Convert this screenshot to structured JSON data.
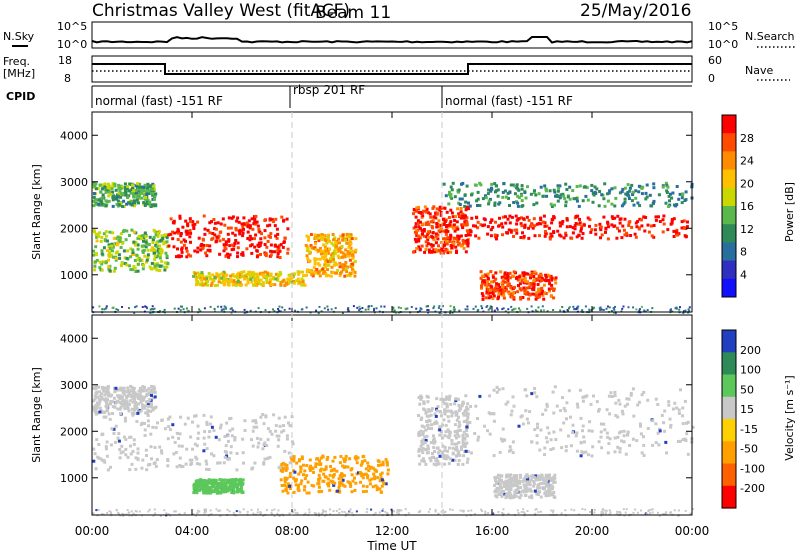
{
  "header": {
    "station": "Christmas Valley West (fitACF)",
    "beam": "Beam 11",
    "date": "25/May/2016"
  },
  "noise_panel": {
    "left_label": "N.Sky",
    "right_label": "N.Search",
    "left_ticks": [
      "10^5",
      "10^0"
    ],
    "right_ticks": [
      "10^5",
      "10^0"
    ]
  },
  "freq_panel": {
    "left_label_1": "Freq.",
    "left_label_2": "[MHz]",
    "right_label": "Nave",
    "left_ticks": [
      "18",
      "8"
    ],
    "right_ticks": [
      "60",
      "0"
    ]
  },
  "cpid_panel": {
    "label": "CPID",
    "segments": [
      {
        "name": "normal (fast) -151 RF",
        "start_hour": 0
      },
      {
        "name": "rbsp 201 RF",
        "start_hour": 8
      },
      {
        "name": "normal (fast) -151 RF",
        "start_hour": 14
      }
    ]
  },
  "power_colorbar": {
    "label": "Power [dB]",
    "ticks": [
      "28",
      "24",
      "20",
      "16",
      "12",
      "8",
      "4"
    ],
    "colors": [
      "#ff0000",
      "#ff4a00",
      "#ff8c00",
      "#ffc000",
      "#c8d800",
      "#5ab84c",
      "#2e8b57",
      "#2a6e9e",
      "#3030c0",
      "#1010ff"
    ]
  },
  "velocity_colorbar": {
    "label": "Velocity [m s⁻¹]",
    "ticks": [
      "200",
      "100",
      "50",
      "15",
      "-15",
      "-50",
      "-100",
      "-200"
    ],
    "colors": [
      "#2040c0",
      "#2e8b57",
      "#5cc85c",
      "#c8c8c8",
      "#ffd000",
      "#ffa000",
      "#ff6000",
      "#ff0000"
    ]
  },
  "x_axis": {
    "label": "Time UT",
    "ticks": [
      "00:00",
      "04:00",
      "08:00",
      "12:00",
      "16:00",
      "20:00",
      "00:00"
    ]
  },
  "chart_data": [
    {
      "type": "heatmap",
      "title": "Power",
      "xlabel": "Time UT",
      "ylabel": "Slant Range [km]",
      "ylim": [
        200,
        4500
      ],
      "xlim_hours": [
        0,
        24
      ],
      "yticks": [
        "1000",
        "2000",
        "3000",
        "4000"
      ],
      "colorbar_label": "Power [dB]",
      "bands": [
        {
          "t": [
            0,
            2.5
          ],
          "r": [
            2500,
            3000
          ],
          "level": 12
        },
        {
          "t": [
            0,
            3.0
          ],
          "r": [
            1100,
            2000
          ],
          "level": 14
        },
        {
          "t": [
            3.0,
            7.8
          ],
          "r": [
            1400,
            2300
          ],
          "level": 28
        },
        {
          "t": [
            4.0,
            8.5
          ],
          "r": [
            800,
            1100
          ],
          "level": 18
        },
        {
          "t": [
            8.5,
            10.5
          ],
          "r": [
            1000,
            1900
          ],
          "level": 20
        },
        {
          "t": [
            12.8,
            15.0
          ],
          "r": [
            1500,
            2500
          ],
          "level": 26
        },
        {
          "t": [
            14.5,
            23.8
          ],
          "r": [
            1800,
            2300
          ],
          "level": 28
        },
        {
          "t": [
            15.5,
            18.5
          ],
          "r": [
            500,
            1100
          ],
          "level": 26
        },
        {
          "t": [
            14.0,
            24.0
          ],
          "r": [
            2500,
            3000
          ],
          "level": 10
        }
      ]
    },
    {
      "type": "heatmap",
      "title": "Velocity",
      "xlabel": "Time UT",
      "ylabel": "Slant Range [km]",
      "ylim": [
        200,
        4500
      ],
      "xlim_hours": [
        0,
        24
      ],
      "yticks": [
        "1000",
        "2000",
        "3000",
        "4000"
      ],
      "colorbar_label": "Velocity [m s⁻¹]",
      "bands": [
        {
          "t": [
            0,
            2.5
          ],
          "r": [
            2400,
            3000
          ],
          "vel": 0
        },
        {
          "t": [
            0,
            8.0
          ],
          "r": [
            1200,
            2400
          ],
          "vel": 0
        },
        {
          "t": [
            4.0,
            6.0
          ],
          "r": [
            700,
            1000
          ],
          "vel": 50
        },
        {
          "t": [
            7.5,
            11.8
          ],
          "r": [
            700,
            1500
          ],
          "vel": -60
        },
        {
          "t": [
            13.0,
            15.0
          ],
          "r": [
            1300,
            2800
          ],
          "vel": 0
        },
        {
          "t": [
            14.5,
            24.0
          ],
          "r": [
            1500,
            3000
          ],
          "vel": 0
        },
        {
          "t": [
            16.0,
            18.5
          ],
          "r": [
            600,
            1100
          ],
          "vel": 0
        }
      ]
    }
  ]
}
